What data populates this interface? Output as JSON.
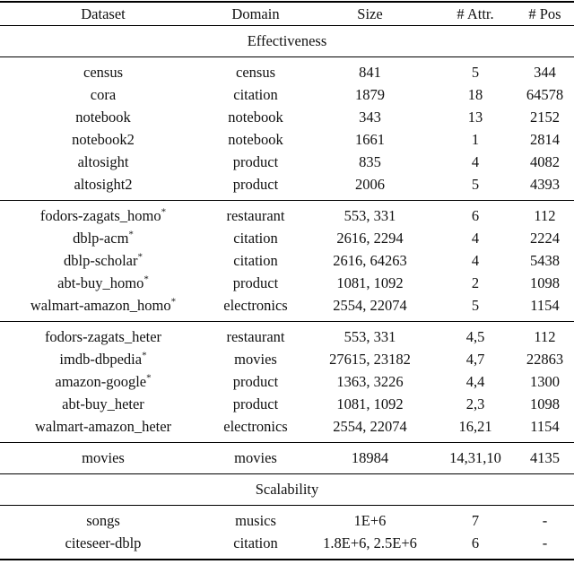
{
  "page": {
    "background_color": "#ffffff",
    "text_color": "#111111",
    "rule_color": "#000000"
  },
  "table": {
    "star_marker": "*",
    "columns": [
      {
        "key": "dataset",
        "label": "Dataset"
      },
      {
        "key": "domain",
        "label": "Domain"
      },
      {
        "key": "size",
        "label": "Size"
      },
      {
        "key": "attr",
        "label": "# Attr."
      },
      {
        "key": "pos",
        "label": "# Pos"
      }
    ],
    "sections": [
      {
        "banner": "Effectiveness",
        "groups": [
          {
            "rows": [
              {
                "name": "census",
                "star": false,
                "domain": "census",
                "size": "841",
                "attr": "5",
                "pos": "344"
              },
              {
                "name": "cora",
                "star": false,
                "domain": "citation",
                "size": "1879",
                "attr": "18",
                "pos": "64578"
              },
              {
                "name": "notebook",
                "star": false,
                "domain": "notebook",
                "size": "343",
                "attr": "13",
                "pos": "2152"
              },
              {
                "name": "notebook2",
                "star": false,
                "domain": "notebook",
                "size": "1661",
                "attr": "1",
                "pos": "2814"
              },
              {
                "name": "altosight",
                "star": false,
                "domain": "product",
                "size": "835",
                "attr": "4",
                "pos": "4082"
              },
              {
                "name": "altosight2",
                "star": false,
                "domain": "product",
                "size": "2006",
                "attr": "5",
                "pos": "4393"
              }
            ]
          },
          {
            "rows": [
              {
                "name": "fodors-zagats_homo",
                "star": true,
                "domain": "restaurant",
                "size": "553, 331",
                "attr": "6",
                "pos": "112"
              },
              {
                "name": "dblp-acm",
                "star": true,
                "domain": "citation",
                "size": "2616, 2294",
                "attr": "4",
                "pos": "2224"
              },
              {
                "name": "dblp-scholar",
                "star": true,
                "domain": "citation",
                "size": "2616, 64263",
                "attr": "4",
                "pos": "5438"
              },
              {
                "name": "abt-buy_homo",
                "star": true,
                "domain": "product",
                "size": "1081, 1092",
                "attr": "2",
                "pos": "1098"
              },
              {
                "name": "walmart-amazon_homo",
                "star": true,
                "domain": "electronics",
                "size": "2554, 22074",
                "attr": "5",
                "pos": "1154"
              }
            ]
          },
          {
            "rows": [
              {
                "name": "fodors-zagats_heter",
                "star": false,
                "domain": "restaurant",
                "size": "553, 331",
                "attr": "4,5",
                "pos": "112"
              },
              {
                "name": "imdb-dbpedia",
                "star": true,
                "domain": "movies",
                "size": "27615, 23182",
                "attr": "4,7",
                "pos": "22863"
              },
              {
                "name": "amazon-google",
                "star": true,
                "domain": "product",
                "size": "1363, 3226",
                "attr": "4,4",
                "pos": "1300"
              },
              {
                "name": "abt-buy_heter",
                "star": false,
                "domain": "product",
                "size": "1081, 1092",
                "attr": "2,3",
                "pos": "1098"
              },
              {
                "name": "walmart-amazon_heter",
                "star": false,
                "domain": "electronics",
                "size": "2554, 22074",
                "attr": "16,21",
                "pos": "1154"
              }
            ]
          },
          {
            "rows": [
              {
                "name": "movies",
                "star": false,
                "domain": "movies",
                "size": "18984",
                "attr": "14,31,10",
                "pos": "4135"
              }
            ]
          }
        ]
      },
      {
        "banner": "Scalability",
        "groups": [
          {
            "rows": [
              {
                "name": "songs",
                "star": false,
                "domain": "musics",
                "size": "1E+6",
                "attr": "7",
                "pos": "-"
              },
              {
                "name": "citeseer-dblp",
                "star": false,
                "domain": "citation",
                "size": "1.8E+6, 2.5E+6",
                "attr": "6",
                "pos": "-"
              }
            ]
          }
        ]
      }
    ]
  }
}
